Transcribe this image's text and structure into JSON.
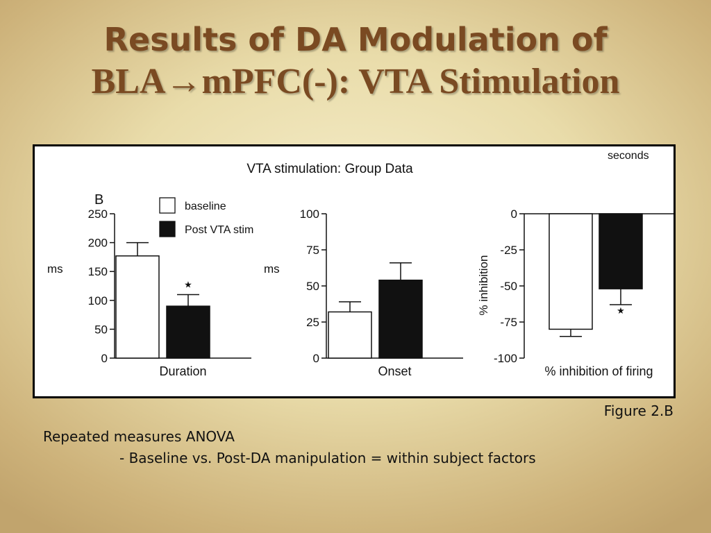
{
  "slide": {
    "title_line1": "Results of DA Modulation of",
    "title_line2": "BLA→mPFC(-): VTA Stimulation",
    "figure_caption": "Figure 2.B",
    "notes": [
      "Repeated measures ANOVA",
      "- Baseline vs. Post-DA manipulation = within subject factors"
    ]
  },
  "figure": {
    "title": "VTA stimulation: Group Data",
    "panel_letter": "B",
    "corner_text": "seconds",
    "legend": [
      {
        "label": "baseline",
        "color": "#ffffff"
      },
      {
        "label": "Post VTA stim",
        "color": "#111111"
      }
    ]
  },
  "chart_data": [
    {
      "type": "bar",
      "xlabel": "Duration",
      "ylabel": "ms",
      "ylim": [
        0,
        250
      ],
      "yticks": [
        0,
        50,
        100,
        150,
        200,
        250
      ],
      "series": [
        {
          "name": "baseline",
          "value": 177,
          "error": 23,
          "significant": false
        },
        {
          "name": "Post VTA stim",
          "value": 90,
          "error": 20,
          "significant": true
        }
      ]
    },
    {
      "type": "bar",
      "xlabel": "Onset",
      "ylabel": "ms",
      "ylim": [
        0,
        100
      ],
      "yticks": [
        0,
        25,
        50,
        75,
        100
      ],
      "series": [
        {
          "name": "baseline",
          "value": 32,
          "error": 7,
          "significant": false
        },
        {
          "name": "Post VTA stim",
          "value": 54,
          "error": 12,
          "significant": false
        }
      ]
    },
    {
      "type": "bar",
      "xlabel": "% inhibition of firing",
      "ylabel": "% inhibition",
      "ylim": [
        -100,
        0
      ],
      "yticks": [
        0,
        -25,
        -50,
        -75,
        -100
      ],
      "series": [
        {
          "name": "baseline",
          "value": -80,
          "error": 5,
          "significant": false
        },
        {
          "name": "Post VTA stim",
          "value": -52,
          "error": 11,
          "significant": true
        }
      ]
    }
  ]
}
